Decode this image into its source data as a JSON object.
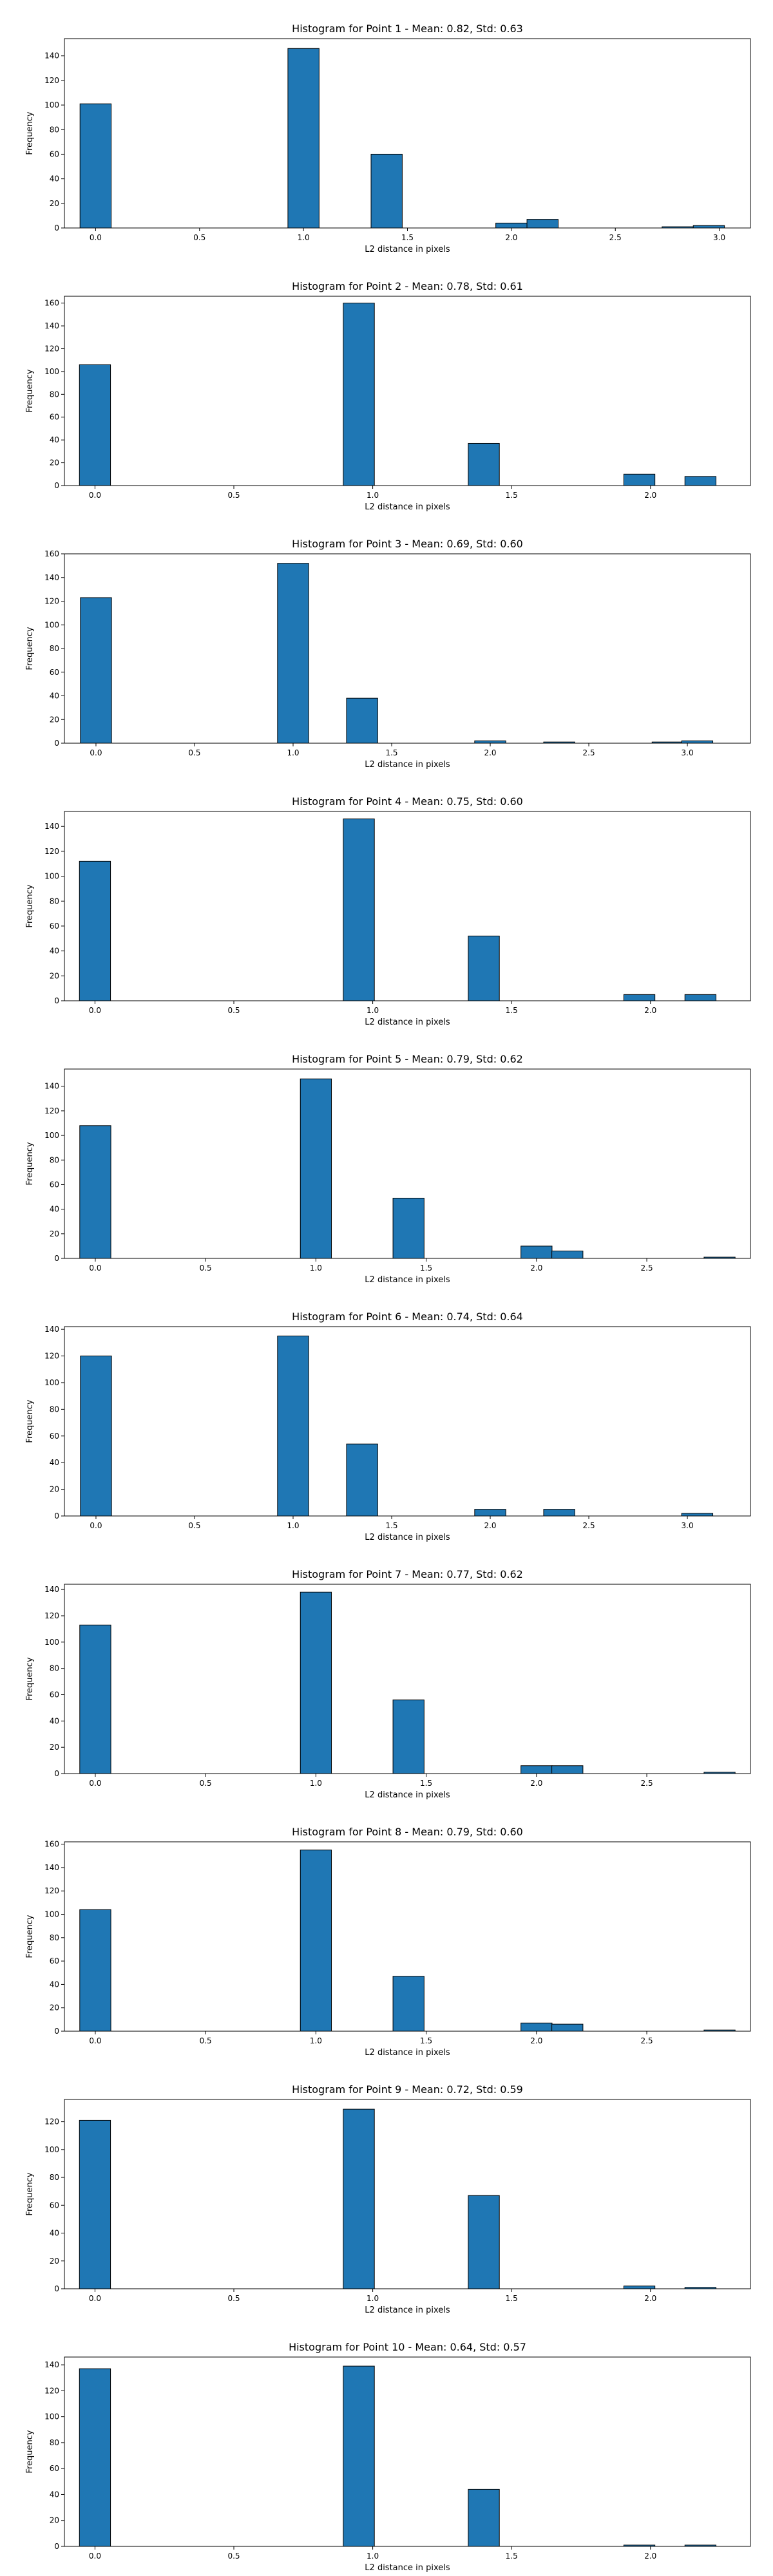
{
  "chart_data": [
    {
      "type": "bar",
      "title": "Histogram for Point 1 - Mean: 0.82, Std: 0.63",
      "xlabel": "L2 distance in pixels",
      "ylabel": "Frequency",
      "xlim": [
        -0.15,
        3.15
      ],
      "ylim": [
        0,
        154
      ],
      "xticks": [
        0.0,
        0.5,
        1.0,
        1.5,
        2.0,
        2.5,
        3.0
      ],
      "xtick_labels": [
        "0.0",
        "0.5",
        "1.0",
        "1.5",
        "2.0",
        "2.5",
        "3.0"
      ],
      "yticks": [
        0,
        20,
        40,
        60,
        80,
        100,
        120,
        140
      ],
      "bar_width": 0.15,
      "bars": [
        {
          "x": 0.0,
          "value": 101
        },
        {
          "x": 1.0,
          "value": 146
        },
        {
          "x": 1.4,
          "value": 60
        },
        {
          "x": 2.0,
          "value": 4
        },
        {
          "x": 2.15,
          "value": 7
        },
        {
          "x": 2.8,
          "value": 1
        },
        {
          "x": 2.95,
          "value": 2
        }
      ],
      "color": "#1f77b4"
    },
    {
      "type": "bar",
      "title": "Histogram for Point 2 - Mean: 0.78, Std: 0.61",
      "xlabel": "L2 distance in pixels",
      "ylabel": "Frequency",
      "xlim": [
        -0.11,
        2.36
      ],
      "ylim": [
        0,
        166
      ],
      "xticks": [
        0.0,
        0.5,
        1.0,
        1.5,
        2.0
      ],
      "xtick_labels": [
        "0.0",
        "0.5",
        "1.0",
        "1.5",
        "2.0"
      ],
      "yticks": [
        0,
        20,
        40,
        60,
        80,
        100,
        120,
        140,
        160
      ],
      "bar_width": 0.112,
      "bars": [
        {
          "x": 0.0,
          "value": 106
        },
        {
          "x": 0.95,
          "value": 160
        },
        {
          "x": 1.4,
          "value": 37
        },
        {
          "x": 1.96,
          "value": 10
        },
        {
          "x": 2.18,
          "value": 8
        }
      ],
      "color": "#1f77b4"
    },
    {
      "type": "bar",
      "title": "Histogram for Point 3 - Mean: 0.69, Std: 0.60",
      "xlabel": "L2 distance in pixels",
      "ylabel": "Frequency",
      "xlim": [
        -0.16,
        3.32
      ],
      "ylim": [
        0,
        160
      ],
      "xticks": [
        0.0,
        0.5,
        1.0,
        1.5,
        2.0,
        2.5,
        3.0
      ],
      "xtick_labels": [
        "0.0",
        "0.5",
        "1.0",
        "1.5",
        "2.0",
        "2.5",
        "3.0"
      ],
      "yticks": [
        0,
        20,
        40,
        60,
        80,
        100,
        120,
        140,
        160
      ],
      "bar_width": 0.158,
      "bars": [
        {
          "x": 0.0,
          "value": 123
        },
        {
          "x": 1.0,
          "value": 152
        },
        {
          "x": 1.35,
          "value": 38
        },
        {
          "x": 2.0,
          "value": 2
        },
        {
          "x": 2.35,
          "value": 1
        },
        {
          "x": 2.9,
          "value": 1
        },
        {
          "x": 3.05,
          "value": 2
        }
      ],
      "color": "#1f77b4"
    },
    {
      "type": "bar",
      "title": "Histogram for Point 4 - Mean: 0.75, Std: 0.60",
      "xlabel": "L2 distance in pixels",
      "ylabel": "Frequency",
      "xlim": [
        -0.11,
        2.36
      ],
      "ylim": [
        0,
        152
      ],
      "xticks": [
        0.0,
        0.5,
        1.0,
        1.5,
        2.0
      ],
      "xtick_labels": [
        "0.0",
        "0.5",
        "1.0",
        "1.5",
        "2.0"
      ],
      "yticks": [
        0,
        20,
        40,
        60,
        80,
        100,
        120,
        140
      ],
      "bar_width": 0.112,
      "bars": [
        {
          "x": 0.0,
          "value": 112
        },
        {
          "x": 0.95,
          "value": 146
        },
        {
          "x": 1.4,
          "value": 52
        },
        {
          "x": 1.96,
          "value": 5
        },
        {
          "x": 2.18,
          "value": 5
        }
      ],
      "color": "#1f77b4"
    },
    {
      "type": "bar",
      "title": "Histogram for Point 5 - Mean: 0.79, Std: 0.62",
      "xlabel": "L2 distance in pixels",
      "ylabel": "Frequency",
      "xlim": [
        -0.14,
        2.97
      ],
      "ylim": [
        0,
        154
      ],
      "xticks": [
        0.0,
        0.5,
        1.0,
        1.5,
        2.0,
        2.5
      ],
      "xtick_labels": [
        "0.0",
        "0.5",
        "1.0",
        "1.5",
        "2.0",
        "2.5"
      ],
      "yticks": [
        0,
        20,
        40,
        60,
        80,
        100,
        120,
        140
      ],
      "bar_width": 0.141,
      "bars": [
        {
          "x": 0.0,
          "value": 108
        },
        {
          "x": 1.0,
          "value": 146
        },
        {
          "x": 1.42,
          "value": 49
        },
        {
          "x": 2.0,
          "value": 10
        },
        {
          "x": 2.14,
          "value": 6
        },
        {
          "x": 2.83,
          "value": 1
        }
      ],
      "color": "#1f77b4"
    },
    {
      "type": "bar",
      "title": "Histogram for Point 6 - Mean: 0.74, Std: 0.64",
      "xlabel": "L2 distance in pixels",
      "ylabel": "Frequency",
      "xlim": [
        -0.16,
        3.32
      ],
      "ylim": [
        0,
        142
      ],
      "xticks": [
        0.0,
        0.5,
        1.0,
        1.5,
        2.0,
        2.5,
        3.0
      ],
      "xtick_labels": [
        "0.0",
        "0.5",
        "1.0",
        "1.5",
        "2.0",
        "2.5",
        "3.0"
      ],
      "yticks": [
        0,
        20,
        40,
        60,
        80,
        100,
        120,
        140
      ],
      "bar_width": 0.158,
      "bars": [
        {
          "x": 0.0,
          "value": 120
        },
        {
          "x": 1.0,
          "value": 135
        },
        {
          "x": 1.35,
          "value": 54
        },
        {
          "x": 2.0,
          "value": 5
        },
        {
          "x": 2.35,
          "value": 5
        },
        {
          "x": 3.05,
          "value": 2
        }
      ],
      "color": "#1f77b4"
    },
    {
      "type": "bar",
      "title": "Histogram for Point 7 - Mean: 0.77, Std: 0.62",
      "xlabel": "L2 distance in pixels",
      "ylabel": "Frequency",
      "xlim": [
        -0.14,
        2.97
      ],
      "ylim": [
        0,
        144
      ],
      "xticks": [
        0.0,
        0.5,
        1.0,
        1.5,
        2.0,
        2.5
      ],
      "xtick_labels": [
        "0.0",
        "0.5",
        "1.0",
        "1.5",
        "2.0",
        "2.5"
      ],
      "yticks": [
        0,
        20,
        40,
        60,
        80,
        100,
        120,
        140
      ],
      "bar_width": 0.141,
      "bars": [
        {
          "x": 0.0,
          "value": 113
        },
        {
          "x": 1.0,
          "value": 138
        },
        {
          "x": 1.42,
          "value": 56
        },
        {
          "x": 2.0,
          "value": 6
        },
        {
          "x": 2.14,
          "value": 6
        },
        {
          "x": 2.83,
          "value": 1
        }
      ],
      "color": "#1f77b4"
    },
    {
      "type": "bar",
      "title": "Histogram for Point 8 - Mean: 0.79, Std: 0.60",
      "xlabel": "L2 distance in pixels",
      "ylabel": "Frequency",
      "xlim": [
        -0.14,
        2.97
      ],
      "ylim": [
        0,
        162
      ],
      "xticks": [
        0.0,
        0.5,
        1.0,
        1.5,
        2.0,
        2.5
      ],
      "xtick_labels": [
        "0.0",
        "0.5",
        "1.0",
        "1.5",
        "2.0",
        "2.5"
      ],
      "yticks": [
        0,
        20,
        40,
        60,
        80,
        100,
        120,
        140,
        160
      ],
      "bar_width": 0.141,
      "bars": [
        {
          "x": 0.0,
          "value": 104
        },
        {
          "x": 1.0,
          "value": 155
        },
        {
          "x": 1.42,
          "value": 47
        },
        {
          "x": 2.0,
          "value": 7
        },
        {
          "x": 2.14,
          "value": 6
        },
        {
          "x": 2.83,
          "value": 1
        }
      ],
      "color": "#1f77b4"
    },
    {
      "type": "bar",
      "title": "Histogram for Point 9 - Mean: 0.72, Std: 0.59",
      "xlabel": "L2 distance in pixels",
      "ylabel": "Frequency",
      "xlim": [
        -0.11,
        2.36
      ],
      "ylim": [
        0,
        136
      ],
      "xticks": [
        0.0,
        0.5,
        1.0,
        1.5,
        2.0
      ],
      "xtick_labels": [
        "0.0",
        "0.5",
        "1.0",
        "1.5",
        "2.0"
      ],
      "yticks": [
        0,
        20,
        40,
        60,
        80,
        100,
        120
      ],
      "bar_width": 0.112,
      "bars": [
        {
          "x": 0.0,
          "value": 121
        },
        {
          "x": 0.95,
          "value": 129
        },
        {
          "x": 1.4,
          "value": 67
        },
        {
          "x": 1.96,
          "value": 2
        },
        {
          "x": 2.18,
          "value": 1
        }
      ],
      "color": "#1f77b4"
    },
    {
      "type": "bar",
      "title": "Histogram for Point 10 - Mean: 0.64, Std: 0.57",
      "xlabel": "L2 distance in pixels",
      "ylabel": "Frequency",
      "xlim": [
        -0.11,
        2.36
      ],
      "ylim": [
        0,
        146
      ],
      "xticks": [
        0.0,
        0.5,
        1.0,
        1.5,
        2.0
      ],
      "xtick_labels": [
        "0.0",
        "0.5",
        "1.0",
        "1.5",
        "2.0"
      ],
      "yticks": [
        0,
        20,
        40,
        60,
        80,
        100,
        120,
        140
      ],
      "bar_width": 0.112,
      "bars": [
        {
          "x": 0.0,
          "value": 137
        },
        {
          "x": 0.95,
          "value": 139
        },
        {
          "x": 1.4,
          "value": 44
        },
        {
          "x": 1.96,
          "value": 1
        },
        {
          "x": 2.18,
          "value": 1
        }
      ],
      "color": "#1f77b4"
    }
  ]
}
